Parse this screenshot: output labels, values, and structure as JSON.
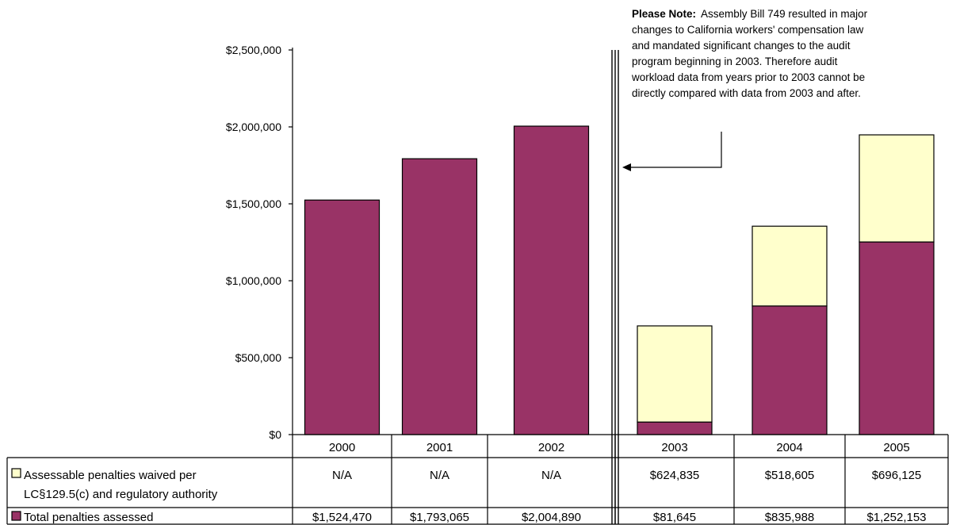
{
  "chart_data": {
    "type": "bar",
    "stacked": true,
    "categories": [
      "2000",
      "2001",
      "2002",
      "2003",
      "2004",
      "2005"
    ],
    "series": [
      {
        "name": "Total penalties assessed",
        "color": "#993366",
        "values": [
          1524470,
          1793065,
          2004890,
          81645,
          835988,
          1252153
        ],
        "labels": [
          "$1,524,470",
          "$1,793,065",
          "$2,004,890",
          "$81,645",
          "$835,988",
          "$1,252,153"
        ]
      },
      {
        "name_lines": [
          "Assessable penalties waived per",
          "LC§129.5(c) and regulatory authority"
        ],
        "color": "#ffffcc",
        "values": [
          null,
          null,
          null,
          624835,
          518605,
          696125
        ],
        "labels": [
          "N/A",
          "N/A",
          "N/A",
          "$624,835",
          "$518,605",
          "$696,125"
        ]
      }
    ],
    "y_ticks": [
      {
        "value": 0,
        "label": "$0"
      },
      {
        "value": 500000,
        "label": "$500,000"
      },
      {
        "value": 1000000,
        "label": "$1,000,000"
      },
      {
        "value": 1500000,
        "label": "$1,500,000"
      },
      {
        "value": 2000000,
        "label": "$2,000,000"
      },
      {
        "value": 2500000,
        "label": "$2,500,000"
      }
    ],
    "ylim": [
      0,
      2500000
    ],
    "grid": false,
    "data_table": true,
    "annotation": {
      "bold_prefix": "Please Note:",
      "lines": [
        "Assembly Bill 749 resulted in major",
        "changes to California workers' compensation law",
        "and mandated significant changes to the audit",
        "program beginning in 2003.  Therefore audit",
        "workload data from years prior to 2003 cannot be",
        "directly compared with data from 2003 and after."
      ]
    }
  }
}
